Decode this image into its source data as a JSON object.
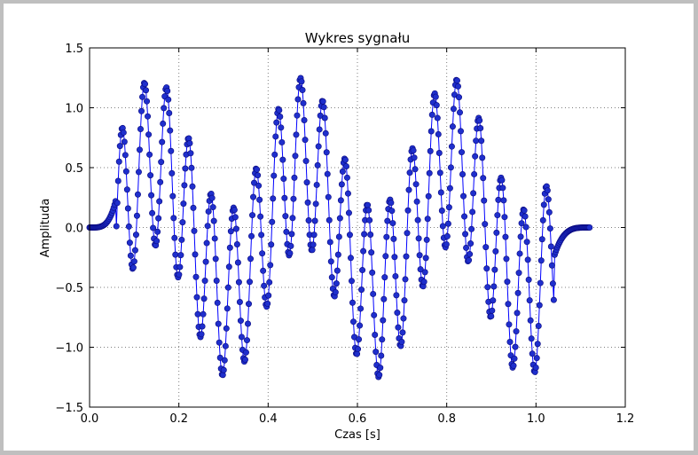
{
  "chart_data": {
    "type": "line",
    "title": "Wykres sygnału",
    "xlabel": "Czas [s]",
    "ylabel": "Amplituda",
    "xlim": [
      0.0,
      1.2
    ],
    "ylim": [
      -1.5,
      1.5
    ],
    "xticks": [
      "0.0",
      "0.2",
      "0.4",
      "0.6",
      "0.8",
      "1.0",
      "1.2"
    ],
    "yticks": [
      "1.5",
      "1.0",
      "0.5",
      "0.0",
      "−0.5",
      "−1.0",
      "−1.5"
    ],
    "grid": true,
    "legend": "none",
    "series": [
      {
        "marker": "circle",
        "color": "#0000ff",
        "marker_color": "#1f2fcc",
        "x_start": 0.0,
        "x_end": 1.12,
        "num_points": 560,
        "components": [
          {
            "type": "onset_ramp",
            "x_start": 0.0,
            "x_end": 0.06,
            "amplitude_start": 0.0,
            "amplitude_end": 0.25
          },
          {
            "type": "sine",
            "frequency_hz": 3,
            "amplitude": 0.55,
            "x_start": 0.06,
            "x_end": 1.04
          },
          {
            "type": "sine",
            "frequency_hz": 20,
            "amplitude": 0.7,
            "x_start": 0.06,
            "x_end": 1.04
          },
          {
            "type": "decay_ramp",
            "x_start": 1.04,
            "x_end": 1.12,
            "amplitude_start": -0.25,
            "amplitude_end": 0.0
          }
        ]
      }
    ]
  },
  "colors": {
    "figure_background": "#bfbfbf",
    "axes_background": "#ffffff",
    "grid": "#7f7f7f"
  }
}
